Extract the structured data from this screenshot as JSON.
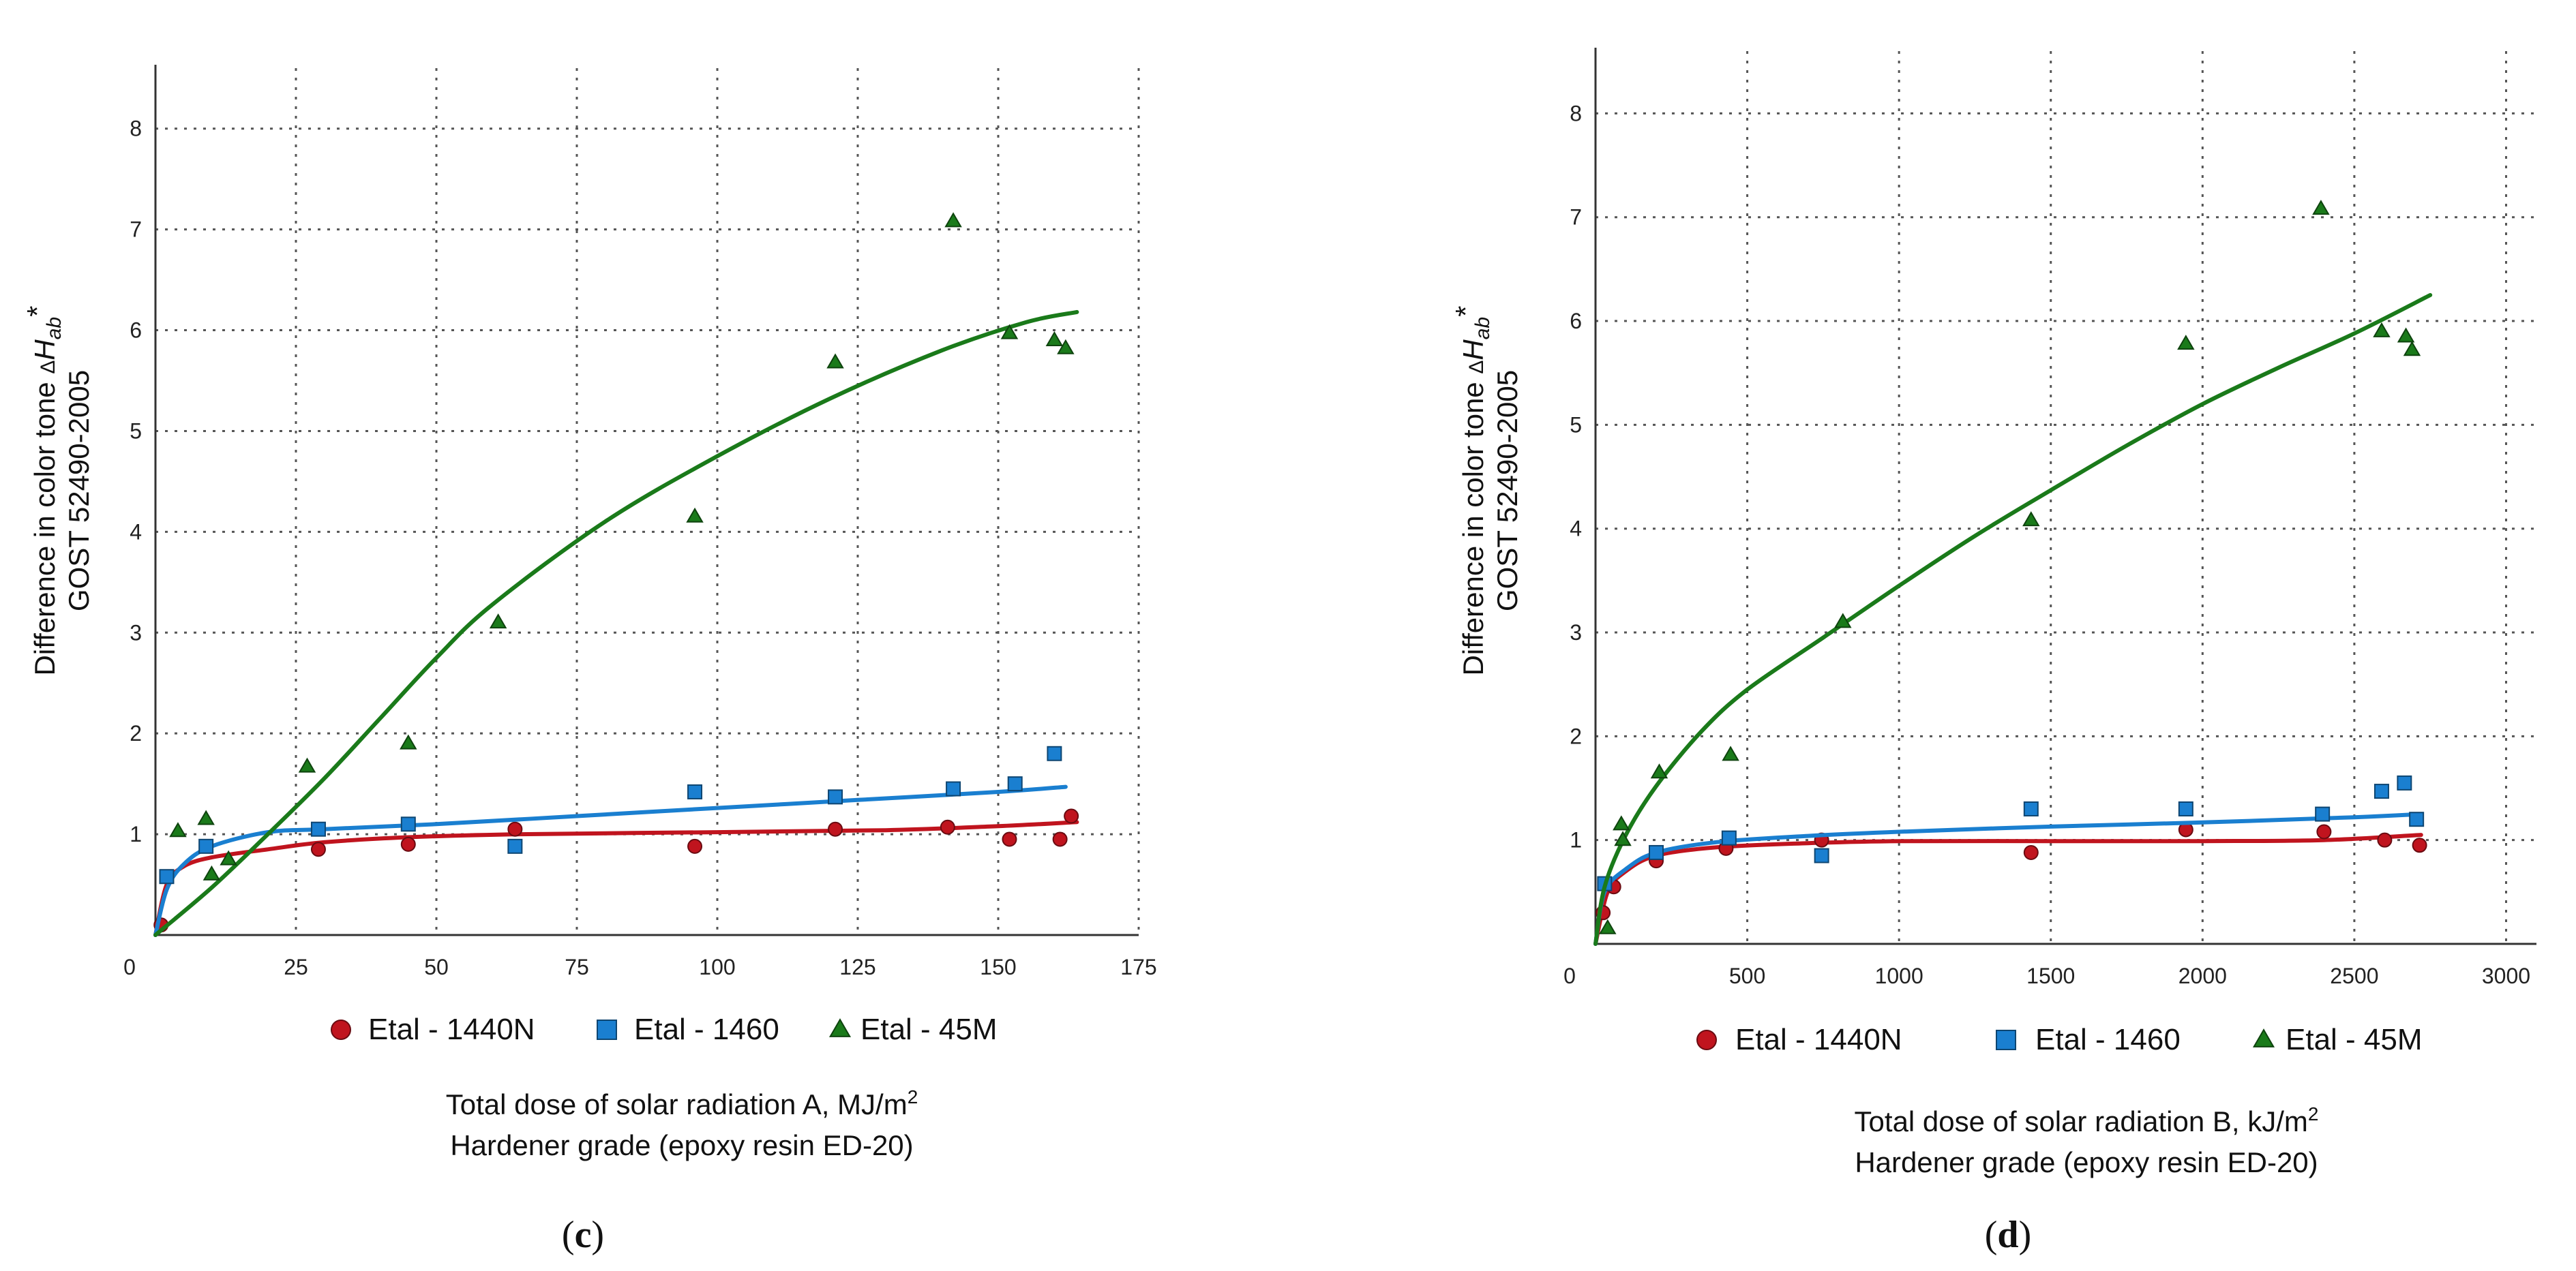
{
  "chart_data": [
    {
      "type": "scatter",
      "panel_label": "(c)",
      "ylabel_lines": [
        "Difference in color tone ΔHab*",
        "GOST  52490-2005"
      ],
      "xlabel_lines": [
        "Total dose of solar radiation A, MJ/m²",
        "Hardener grade (epoxy resin ED-20)"
      ],
      "xlim": [
        0,
        175
      ],
      "ylim": [
        0,
        8.6
      ],
      "x_ticks": [
        25,
        50,
        75,
        100,
        125,
        150,
        175
      ],
      "y_ticks": [
        1,
        2,
        3,
        4,
        5,
        6,
        7,
        8
      ],
      "origin_label": "0",
      "grid": true,
      "series": [
        {
          "name": "Etal - 1440N",
          "color": "#c0141e",
          "marker": "circle",
          "points": [
            [
              1,
              0.1
            ],
            [
              29,
              0.85
            ],
            [
              45,
              0.9
            ],
            [
              64,
              1.05
            ],
            [
              96,
              0.88
            ],
            [
              121,
              1.05
            ],
            [
              141,
              1.07
            ],
            [
              152,
              0.95
            ],
            [
              161,
              0.95
            ],
            [
              163,
              1.18
            ]
          ],
          "fit": [
            [
              0,
              0.0
            ],
            [
              2,
              0.5
            ],
            [
              5,
              0.68
            ],
            [
              10,
              0.77
            ],
            [
              20,
              0.85
            ],
            [
              30,
              0.92
            ],
            [
              45,
              0.97
            ],
            [
              65,
              1.0
            ],
            [
              100,
              1.02
            ],
            [
              130,
              1.04
            ],
            [
              150,
              1.08
            ],
            [
              164,
              1.12
            ]
          ]
        },
        {
          "name": "Etal - 1460",
          "color": "#1a7fd0",
          "marker": "square",
          "points": [
            [
              2,
              0.58
            ],
            [
              9,
              0.88
            ],
            [
              29,
              1.05
            ],
            [
              45,
              1.1
            ],
            [
              64,
              0.88
            ],
            [
              96,
              1.42
            ],
            [
              121,
              1.37
            ],
            [
              142,
              1.45
            ],
            [
              153,
              1.5
            ],
            [
              160,
              1.8
            ]
          ],
          "fit": [
            [
              0,
              0.0
            ],
            [
              2,
              0.45
            ],
            [
              5,
              0.7
            ],
            [
              10,
              0.88
            ],
            [
              20,
              1.02
            ],
            [
              30,
              1.05
            ],
            [
              50,
              1.1
            ],
            [
              75,
              1.18
            ],
            [
              100,
              1.26
            ],
            [
              125,
              1.34
            ],
            [
              150,
              1.42
            ],
            [
              162,
              1.47
            ]
          ]
        },
        {
          "name": "Etal - 45M",
          "color": "#1a7a1a",
          "marker": "triangle",
          "points": [
            [
              4,
              1.03
            ],
            [
              9,
              1.15
            ],
            [
              10,
              0.6
            ],
            [
              13,
              0.75
            ],
            [
              27,
              1.67
            ],
            [
              45,
              1.9
            ],
            [
              61,
              3.1
            ],
            [
              96,
              4.15
            ],
            [
              121,
              5.68
            ],
            [
              142,
              7.08
            ],
            [
              152,
              5.97
            ],
            [
              160,
              5.9
            ],
            [
              162,
              5.82
            ]
          ],
          "fit": [
            [
              0,
              0.0
            ],
            [
              10,
              0.47
            ],
            [
              20,
              1.0
            ],
            [
              30,
              1.55
            ],
            [
              40,
              2.15
            ],
            [
              50,
              2.75
            ],
            [
              60,
              3.28
            ],
            [
              80,
              4.1
            ],
            [
              100,
              4.75
            ],
            [
              120,
              5.32
            ],
            [
              140,
              5.8
            ],
            [
              155,
              6.08
            ],
            [
              164,
              6.18
            ]
          ]
        }
      ]
    },
    {
      "type": "scatter",
      "panel_label": "(d)",
      "ylabel_lines": [
        "Difference in color tone ΔHab*",
        "GOST  52490-2005"
      ],
      "xlabel_lines": [
        "Total dose of solar radiation B, kJ/m²",
        "Hardener grade (epoxy resin ED-20)"
      ],
      "xlim": [
        0,
        3100
      ],
      "ylim": [
        0,
        8.6
      ],
      "x_ticks": [
        500,
        1000,
        1500,
        2000,
        2500,
        3000
      ],
      "y_ticks": [
        1,
        2,
        3,
        4,
        5,
        6,
        7,
        8
      ],
      "origin_label": "0",
      "grid": true,
      "series": [
        {
          "name": "Etal - 1440N",
          "color": "#c0141e",
          "marker": "circle",
          "points": [
            [
              25,
              0.3
            ],
            [
              60,
              0.55
            ],
            [
              200,
              0.8
            ],
            [
              430,
              0.92
            ],
            [
              745,
              1.0
            ],
            [
              1435,
              0.88
            ],
            [
              1945,
              1.1
            ],
            [
              2400,
              1.08
            ],
            [
              2600,
              1.0
            ],
            [
              2715,
              0.95
            ]
          ],
          "fit": [
            [
              0,
              0.0
            ],
            [
              40,
              0.5
            ],
            [
              100,
              0.7
            ],
            [
              200,
              0.85
            ],
            [
              400,
              0.93
            ],
            [
              700,
              0.97
            ],
            [
              1000,
              0.99
            ],
            [
              1500,
              0.99
            ],
            [
              2000,
              0.99
            ],
            [
              2400,
              1.0
            ],
            [
              2720,
              1.05
            ]
          ]
        },
        {
          "name": "Etal - 1460",
          "color": "#1a7fd0",
          "marker": "square",
          "points": [
            [
              30,
              0.58
            ],
            [
              200,
              0.88
            ],
            [
              440,
              1.02
            ],
            [
              745,
              0.85
            ],
            [
              1435,
              1.3
            ],
            [
              1945,
              1.3
            ],
            [
              2395,
              1.25
            ],
            [
              2590,
              1.47
            ],
            [
              2665,
              1.55
            ],
            [
              2705,
              1.2
            ]
          ],
          "fit": [
            [
              0,
              0.0
            ],
            [
              30,
              0.5
            ],
            [
              100,
              0.72
            ],
            [
              200,
              0.88
            ],
            [
              400,
              0.98
            ],
            [
              700,
              1.04
            ],
            [
              1000,
              1.08
            ],
            [
              1500,
              1.13
            ],
            [
              2000,
              1.17
            ],
            [
              2500,
              1.22
            ],
            [
              2720,
              1.25
            ]
          ]
        },
        {
          "name": "Etal - 45M",
          "color": "#1a7a1a",
          "marker": "triangle",
          "points": [
            [
              40,
              0.15
            ],
            [
              85,
              1.15
            ],
            [
              90,
              1.0
            ],
            [
              210,
              1.65
            ],
            [
              445,
              1.82
            ],
            [
              815,
              3.1
            ],
            [
              1435,
              4.08
            ],
            [
              1945,
              5.78
            ],
            [
              2390,
              7.08
            ],
            [
              2590,
              5.9
            ],
            [
              2670,
              5.85
            ],
            [
              2690,
              5.72
            ]
          ],
          "fit": [
            [
              0,
              0.0
            ],
            [
              30,
              0.55
            ],
            [
              100,
              1.05
            ],
            [
              200,
              1.52
            ],
            [
              350,
              2.05
            ],
            [
              500,
              2.45
            ],
            [
              750,
              2.95
            ],
            [
              1000,
              3.45
            ],
            [
              1250,
              3.93
            ],
            [
              1500,
              4.37
            ],
            [
              1750,
              4.8
            ],
            [
              2000,
              5.2
            ],
            [
              2250,
              5.55
            ],
            [
              2500,
              5.88
            ],
            [
              2750,
              6.25
            ]
          ]
        }
      ]
    }
  ]
}
